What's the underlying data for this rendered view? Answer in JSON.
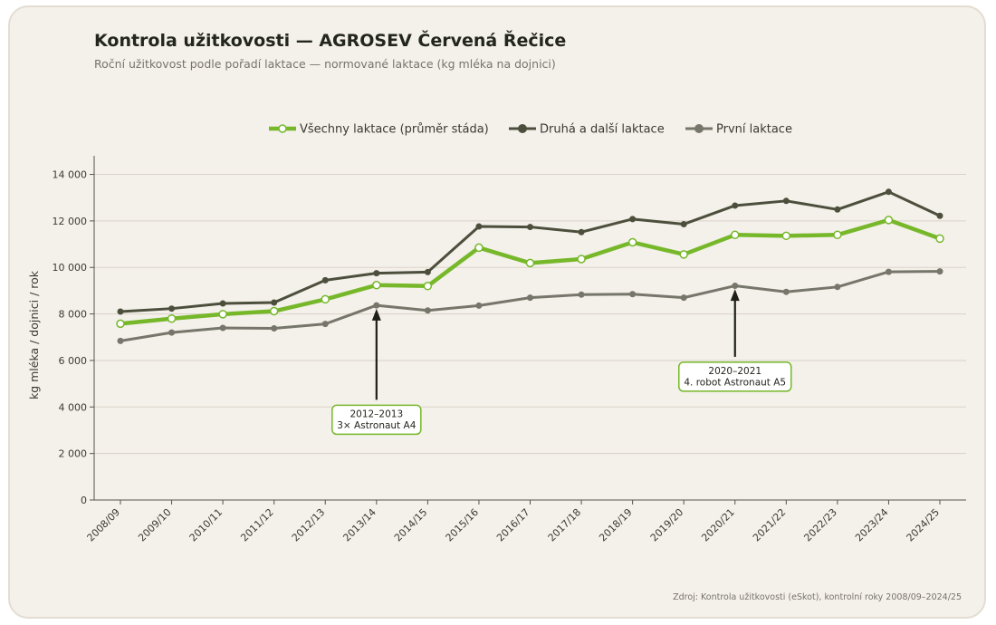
{
  "page": {
    "title": "Kontrola užitkovosti — AGROSEV Červená Řečice",
    "subtitle": "Roční užitkovost podle pořadí laktace — normované laktace (kg mléka na dojnici)",
    "source": "Zdroj: Kontrola užitkovosti (eSkot), kontrolní roky 2008/09–2024/25"
  },
  "chart_data": {
    "type": "line",
    "title": "Kontrola užitkovosti — AGROSEV Červená Řečice",
    "subtitle": "Roční užitkovost podle pořadí laktace — normované laktace (kg mléka na dojnici)",
    "xlabel": "",
    "ylabel": "kg mléka / dojnici / rok",
    "ylim": [
      0,
      14800
    ],
    "yticks": [
      0,
      2000,
      4000,
      6000,
      8000,
      10000,
      12000,
      14000
    ],
    "ytick_labels": [
      "0",
      "2 000",
      "4 000",
      "6 000",
      "8 000",
      "10 000",
      "12 000",
      "14 000"
    ],
    "grid": "horizontal",
    "legend": "top-center",
    "categories": [
      "2008/09",
      "2009/10",
      "2010/11",
      "2011/12",
      "2012/13",
      "2013/14",
      "2014/15",
      "2015/16",
      "2016/17",
      "2017/18",
      "2018/19",
      "2019/20",
      "2020/21",
      "2021/22",
      "2022/23",
      "2023/24",
      "2024/25"
    ],
    "series": [
      {
        "name": "Všechny laktace (průměr stáda)",
        "color": "#76b82a",
        "values": [
          7580,
          7800,
          7990,
          8120,
          8630,
          9240,
          9200,
          10850,
          10190,
          10360,
          11080,
          10560,
          11400,
          11360,
          11400,
          12040,
          11240
        ]
      },
      {
        "name": "Druhá a další laktace",
        "color": "#4d4f3d",
        "values": [
          8100,
          8230,
          8450,
          8490,
          9450,
          9750,
          9800,
          11760,
          11740,
          11520,
          12080,
          11860,
          12660,
          12860,
          12490,
          13250,
          12220
        ]
      },
      {
        "name": "První laktace",
        "color": "#76766b",
        "values": [
          6840,
          7200,
          7400,
          7380,
          7570,
          8370,
          8150,
          8360,
          8700,
          8830,
          8850,
          8700,
          9210,
          8950,
          9160,
          9810,
          9830
        ]
      }
    ],
    "annotations": [
      {
        "lines": [
          "2012–2013",
          "3× Astronaut A4"
        ],
        "category": "2013/14",
        "target": 8300,
        "text_level": 3450
      },
      {
        "lines": [
          "2020–2021",
          "4. robot Astronaut A5"
        ],
        "category": "2020/21",
        "target": 9150,
        "text_level": 5300
      }
    ]
  }
}
